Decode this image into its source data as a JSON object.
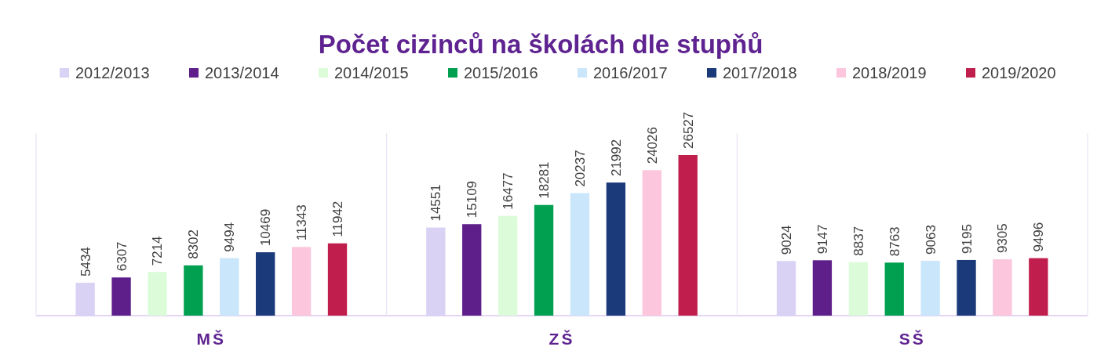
{
  "chart_data": {
    "type": "bar",
    "title": "Počet cizinců na školách dle stupňů",
    "categories": [
      "MŠ",
      "ZŠ",
      "SŠ"
    ],
    "legend": "top",
    "data_labels": true,
    "series": [
      {
        "name": "2012/2013",
        "color": "#d9d2f5",
        "values": [
          5434,
          14551,
          9024
        ]
      },
      {
        "name": "2013/2014",
        "color": "#5e1f8a",
        "values": [
          6307,
          15109,
          9147
        ]
      },
      {
        "name": "2014/2015",
        "color": "#dcfcd9",
        "values": [
          7214,
          16477,
          8837
        ]
      },
      {
        "name": "2015/2016",
        "color": "#00a050",
        "values": [
          8302,
          18281,
          8763
        ]
      },
      {
        "name": "2016/2017",
        "color": "#c9e6fb",
        "values": [
          9494,
          20237,
          9063
        ]
      },
      {
        "name": "2017/2018",
        "color": "#1b3a7a",
        "values": [
          10469,
          21992,
          9195
        ]
      },
      {
        "name": "2018/2019",
        "color": "#fcc6dc",
        "values": [
          11343,
          24026,
          9305
        ]
      },
      {
        "name": "2019/2020",
        "color": "#c01f4e",
        "values": [
          11942,
          26527,
          9496
        ]
      }
    ]
  }
}
